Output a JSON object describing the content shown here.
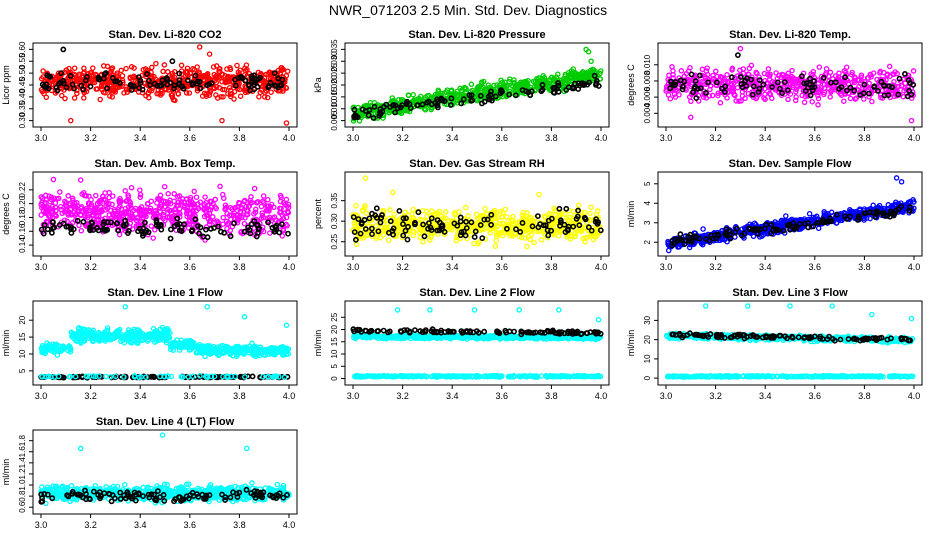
{
  "figure_title": "NWR_071203  2.5 Min. Std. Dev. Diagnostics",
  "colors": {
    "red": "#ff0000",
    "green": "#00cc00",
    "magenta": "#ff00ff",
    "yellow": "#ffff00",
    "blue": "#0000ff",
    "cyan": "#00ffff",
    "black": "#000000"
  },
  "chart_data": [
    {
      "type": "scatter",
      "title": "Stan. Dev. Li-820 CO2",
      "ylabel": "Licor ppm",
      "x_ticks": [
        "3.0",
        "3.2",
        "3.4",
        "3.6",
        "3.8",
        "4.0"
      ],
      "xlim": [
        3.0,
        4.0
      ],
      "y_ticks": [
        "0.30",
        "0.35",
        "0.40",
        "0.45",
        "0.50",
        "0.55",
        "0.60"
      ],
      "ylim": [
        0.29,
        0.61
      ],
      "grid": false,
      "series": [
        {
          "name": "main",
          "color": "red",
          "pattern": "band",
          "count": 620,
          "start": 0.46,
          "end": 0.465,
          "spread": 0.09,
          "outliers": [
            [
              3.12,
              0.3
            ],
            [
              3.64,
              0.61
            ],
            [
              3.68,
              0.58
            ],
            [
              3.99,
              0.29
            ],
            [
              3.73,
              0.3
            ]
          ]
        },
        {
          "name": "subset",
          "color": "black",
          "pattern": "band",
          "count": 110,
          "start": 0.455,
          "end": 0.46,
          "spread": 0.06,
          "outliers": [
            [
              3.09,
              0.6
            ],
            [
              3.53,
              0.55
            ]
          ]
        }
      ]
    },
    {
      "type": "scatter",
      "title": "Stan. Dev. Li-820 Pressure",
      "ylabel": "kPa",
      "x_ticks": [
        "3.0",
        "3.2",
        "3.4",
        "3.6",
        "3.8",
        "4.0"
      ],
      "xlim": [
        3.0,
        4.0
      ],
      "y_ticks": [
        "0.005",
        "0.010",
        "0.015",
        "0.020",
        "0.025",
        "0.030",
        "0.035"
      ],
      "ylim": [
        0.004,
        0.036
      ],
      "grid": false,
      "series": [
        {
          "name": "main",
          "color": "green",
          "pattern": "ramp",
          "count": 620,
          "start": 0.008,
          "end": 0.0245,
          "spread": 0.0055,
          "outliers": [
            [
              3.94,
              0.035
            ],
            [
              3.95,
              0.034
            ],
            [
              3.96,
              0.03
            ]
          ]
        },
        {
          "name": "subset",
          "color": "black",
          "pattern": "ramp",
          "count": 110,
          "start": 0.008,
          "end": 0.021,
          "spread": 0.004,
          "outliers": []
        }
      ]
    },
    {
      "type": "scatter",
      "title": "Stan. Dev. Li-820 Temp.",
      "ylabel": "degrees C",
      "x_ticks": [
        "3.0",
        "3.2",
        "3.4",
        "3.6",
        "3.8",
        "4.0"
      ],
      "xlim": [
        3.0,
        4.0
      ],
      "y_ticks": [
        "0.004",
        "0.006",
        "0.008",
        "0.010"
      ],
      "ylim": [
        0.0028,
        0.0122
      ],
      "grid": false,
      "series": [
        {
          "name": "main",
          "color": "magenta",
          "pattern": "band",
          "count": 560,
          "start": 0.0075,
          "end": 0.0075,
          "spread": 0.0028,
          "outliers": [
            [
              3.3,
              0.012
            ],
            [
              3.1,
              0.0035
            ],
            [
              3.99,
              0.0031
            ]
          ]
        },
        {
          "name": "subset",
          "color": "black",
          "pattern": "band",
          "count": 90,
          "start": 0.0075,
          "end": 0.0073,
          "spread": 0.002,
          "outliers": [
            [
              3.29,
              0.0112
            ]
          ]
        }
      ]
    },
    {
      "type": "scatter",
      "title": "Stan. Dev. Amb. Box Temp.",
      "ylabel": "degrees C",
      "x_ticks": [
        "3.0",
        "3.2",
        "3.4",
        "3.6",
        "3.8",
        "4.0"
      ],
      "xlim": [
        3.0,
        4.0
      ],
      "y_ticks": [
        "0.14",
        "0.16",
        "0.18",
        "0.20",
        "0.22"
      ],
      "ylim": [
        0.13,
        0.24
      ],
      "grid": false,
      "series": [
        {
          "name": "main",
          "color": "magenta",
          "pattern": "band",
          "count": 620,
          "start": 0.188,
          "end": 0.185,
          "spread": 0.045,
          "outliers": [
            [
              3.05,
              0.235
            ],
            [
              3.16,
              0.234
            ]
          ]
        },
        {
          "name": "subset",
          "color": "black",
          "pattern": "low",
          "count": 110,
          "start": 0.165,
          "end": 0.165,
          "spread": 0.018,
          "outliers": []
        }
      ]
    },
    {
      "type": "scatter",
      "title": "Stan. Dev. Gas Stream RH",
      "ylabel": "percent",
      "x_ticks": [
        "3.0",
        "3.2",
        "3.4",
        "3.6",
        "3.8",
        "4.0"
      ],
      "xlim": [
        3.0,
        4.0
      ],
      "y_ticks": [
        "0.25",
        "0.30",
        "0.35"
      ],
      "ylim": [
        0.225,
        0.41
      ],
      "grid": false,
      "series": [
        {
          "name": "main",
          "color": "yellow",
          "pattern": "band",
          "count": 620,
          "start": 0.29,
          "end": 0.29,
          "spread": 0.055,
          "outliers": [
            [
              3.05,
              0.405
            ],
            [
              3.16,
              0.37
            ],
            [
              3.75,
              0.365
            ]
          ]
        },
        {
          "name": "subset",
          "color": "black",
          "pattern": "band",
          "count": 110,
          "start": 0.29,
          "end": 0.29,
          "spread": 0.05,
          "outliers": []
        }
      ]
    },
    {
      "type": "scatter",
      "title": "Stan. Dev. Sample Flow",
      "ylabel": "ml/min",
      "x_ticks": [
        "3.0",
        "3.2",
        "3.4",
        "3.6",
        "3.8",
        "4.0"
      ],
      "xlim": [
        3.0,
        4.0
      ],
      "y_ticks": [
        "2",
        "3",
        "4",
        "5"
      ],
      "ylim": [
        1.5,
        5.4
      ],
      "grid": false,
      "series": [
        {
          "name": "main",
          "color": "blue",
          "pattern": "ramp",
          "count": 620,
          "start": 1.9,
          "end": 3.9,
          "spread": 0.5,
          "outliers": [
            [
              3.93,
              5.3
            ],
            [
              3.95,
              5.1
            ]
          ]
        },
        {
          "name": "subset",
          "color": "black",
          "pattern": "ramp",
          "count": 110,
          "start": 2.0,
          "end": 3.7,
          "spread": 0.35,
          "outliers": []
        }
      ]
    },
    {
      "type": "scatter",
      "title": "Stan. Dev. Line 1 Flow",
      "ylabel": "ml/min",
      "x_ticks": [
        "3.0",
        "3.2",
        "3.4",
        "3.6",
        "3.8",
        "4.0"
      ],
      "xlim": [
        3.0,
        4.0
      ],
      "y_ticks": [
        "5",
        "10",
        "15",
        "20"
      ],
      "ylim": [
        2.0,
        24.5
      ],
      "grid": false,
      "series": [
        {
          "name": "main",
          "color": "cyan",
          "pattern": "hump",
          "count": 700,
          "start": 11.5,
          "end": 11.0,
          "spread": 2.2,
          "outliers": [
            [
              3.34,
              24
            ],
            [
              3.67,
              24
            ],
            [
              3.82,
              21
            ],
            [
              3.99,
              18.5
            ]
          ]
        },
        {
          "name": "subset",
          "color": "black",
          "pattern": "band",
          "count": 110,
          "start": 3.2,
          "end": 3.2,
          "spread": 0.3,
          "outliers": []
        },
        {
          "name": "low",
          "color": "cyan",
          "pattern": "band",
          "count": 60,
          "start": 3.3,
          "end": 3.3,
          "spread": 0.3,
          "outliers": []
        }
      ]
    },
    {
      "type": "scatter",
      "title": "Stan. Dev. Line 2 Flow",
      "ylabel": "ml/min",
      "x_ticks": [
        "3.0",
        "3.2",
        "3.4",
        "3.6",
        "3.8",
        "4.0"
      ],
      "xlim": [
        3.0,
        4.0
      ],
      "y_ticks": [
        "0",
        "5",
        "10",
        "15",
        "20",
        "25"
      ],
      "ylim": [
        -1,
        30
      ],
      "grid": false,
      "series": [
        {
          "name": "main",
          "color": "cyan",
          "pattern": "band",
          "count": 500,
          "start": 17.2,
          "end": 16.8,
          "spread": 1.2,
          "outliers": [
            [
              3.18,
              28
            ],
            [
              3.31,
              28
            ],
            [
              3.49,
              28
            ],
            [
              3.67,
              28
            ],
            [
              3.83,
              28
            ],
            [
              3.99,
              24
            ]
          ]
        },
        {
          "name": "baseline",
          "color": "cyan",
          "pattern": "band",
          "count": 300,
          "start": 0.9,
          "end": 0.9,
          "spread": 0.4,
          "outliers": []
        },
        {
          "name": "subset",
          "color": "black",
          "pattern": "band",
          "count": 110,
          "start": 19.6,
          "end": 18.6,
          "spread": 1.0,
          "outliers": []
        }
      ]
    },
    {
      "type": "scatter",
      "title": "Stan. Dev. Line 3 Flow",
      "ylabel": "ml/min",
      "x_ticks": [
        "3.0",
        "3.2",
        "3.4",
        "3.6",
        "3.8",
        "4.0"
      ],
      "xlim": [
        3.0,
        4.0
      ],
      "y_ticks": [
        "0",
        "10",
        "20",
        "30"
      ],
      "ylim": [
        -1.5,
        38
      ],
      "grid": false,
      "series": [
        {
          "name": "main",
          "color": "cyan",
          "pattern": "band",
          "count": 500,
          "start": 22.0,
          "end": 19.8,
          "spread": 2.0,
          "outliers": [
            [
              3.16,
              37.5
            ],
            [
              3.33,
              37.5
            ],
            [
              3.5,
              37.5
            ],
            [
              3.67,
              37.5
            ],
            [
              3.83,
              33
            ],
            [
              3.99,
              31
            ]
          ]
        },
        {
          "name": "baseline",
          "color": "cyan",
          "pattern": "band",
          "count": 300,
          "start": 0.9,
          "end": 0.9,
          "spread": 0.5,
          "outliers": []
        },
        {
          "name": "subset",
          "color": "black",
          "pattern": "band",
          "count": 110,
          "start": 22.5,
          "end": 20.0,
          "spread": 1.5,
          "outliers": []
        }
      ]
    },
    {
      "type": "scatter",
      "title": "Stan. Dev. Line 4 (LT) Flow",
      "ylabel": "ml/min",
      "x_ticks": [
        "3.0",
        "3.2",
        "3.4",
        "3.6",
        "3.8",
        "4.0"
      ],
      "xlim": [
        3.0,
        4.0
      ],
      "y_ticks": [
        "0.6",
        "0.8",
        "1.0",
        "1.2",
        "1.4",
        "1.6",
        "1.8"
      ],
      "ylim": [
        0.55,
        1.92
      ],
      "grid": false,
      "series": [
        {
          "name": "main",
          "color": "cyan",
          "pattern": "band",
          "count": 700,
          "start": 0.85,
          "end": 0.85,
          "spread": 0.2,
          "outliers": [
            [
              3.16,
              1.66
            ],
            [
              3.49,
              1.9
            ],
            [
              3.83,
              1.66
            ]
          ]
        },
        {
          "name": "subset",
          "color": "black",
          "pattern": "band",
          "count": 110,
          "start": 0.8,
          "end": 0.8,
          "spread": 0.15,
          "outliers": []
        }
      ]
    }
  ]
}
